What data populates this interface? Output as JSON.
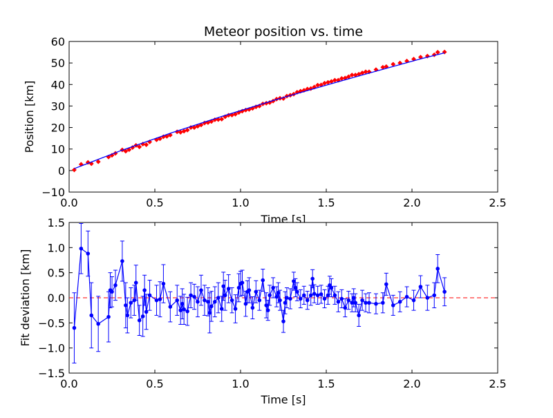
{
  "chart_data": [
    {
      "type": "scatter",
      "title": "Meteor position vs. time",
      "xlabel": "Time [s]",
      "ylabel": "Position [km]",
      "xlim": [
        0.0,
        2.5
      ],
      "ylim": [
        -10,
        60
      ],
      "xticks": [
        "0.0",
        "0.5",
        "1.0",
        "1.5",
        "2.0",
        "2.5"
      ],
      "yticks": [
        "−10",
        "0",
        "10",
        "20",
        "30",
        "40",
        "50",
        "60"
      ],
      "grid": false,
      "series": [
        {
          "kind": "observations",
          "marker": "diamond",
          "color": "#ff0000",
          "x": [
            0.03,
            0.07,
            0.11,
            0.13,
            0.17,
            0.23,
            0.25,
            0.27,
            0.31,
            0.33,
            0.35,
            0.37,
            0.39,
            0.41,
            0.43,
            0.45,
            0.47,
            0.51,
            0.53,
            0.55,
            0.57,
            0.59,
            0.63,
            0.65,
            0.67,
            0.69,
            0.71,
            0.73,
            0.75,
            0.77,
            0.79,
            0.81,
            0.83,
            0.85,
            0.87,
            0.89,
            0.91,
            0.93,
            0.95,
            0.97,
            0.99,
            1.01,
            1.03,
            1.05,
            1.07,
            1.09,
            1.11,
            1.13,
            1.15,
            1.17,
            1.19,
            1.21,
            1.23,
            1.25,
            1.27,
            1.29,
            1.31,
            1.33,
            1.35,
            1.37,
            1.39,
            1.41,
            1.43,
            1.45,
            1.47,
            1.49,
            1.51,
            1.53,
            1.55,
            1.57,
            1.59,
            1.61,
            1.63,
            1.65,
            1.67,
            1.69,
            1.71,
            1.73,
            1.75,
            1.79,
            1.83,
            1.85,
            1.89,
            1.93,
            1.97,
            2.01,
            2.05,
            2.09,
            2.13,
            2.15,
            2.19
          ],
          "y": [
            0.3,
            2.9,
            3.8,
            3.2,
            4.1,
            6.3,
            7.1,
            8.0,
            9.6,
            9.0,
            9.7,
            10.7,
            11.7,
            11.0,
            12.3,
            12.0,
            13.3,
            14.3,
            14.8,
            15.7,
            15.9,
            16.5,
            18.0,
            17.8,
            18.3,
            18.8,
            20.0,
            20.0,
            20.6,
            21.2,
            22.1,
            22.3,
            22.8,
            23.6,
            23.7,
            23.9,
            25.0,
            25.7,
            25.8,
            26.2,
            27.0,
            27.6,
            28.1,
            28.4,
            28.9,
            29.6,
            30.0,
            31.0,
            31.3,
            31.6,
            32.3,
            33.2,
            33.6,
            33.5,
            34.6,
            35.0,
            35.5,
            36.4,
            36.9,
            37.3,
            37.9,
            38.1,
            38.8,
            39.7,
            39.8,
            40.6,
            41.0,
            41.4,
            42.0,
            42.0,
            42.8,
            43.0,
            43.6,
            44.4,
            44.4,
            44.8,
            45.4,
            45.9,
            45.9,
            46.9,
            48.0,
            48.3,
            49.4,
            50.0,
            50.9,
            51.8,
            52.7,
            53.2,
            53.8,
            55.0,
            55.1
          ]
        },
        {
          "kind": "fit",
          "color": "#0000ff",
          "x": [
            0.03,
            0.3,
            0.6,
            0.9,
            1.2,
            1.5,
            1.8,
            2.05,
            2.19
          ],
          "y": [
            0.9,
            9.2,
            17.6,
            25.4,
            32.8,
            39.7,
            46.4,
            51.9,
            54.7
          ]
        }
      ]
    },
    {
      "type": "line",
      "title": "",
      "xlabel": "Time [s]",
      "ylabel": "Fit deviation [km]",
      "xlim": [
        0.0,
        2.5
      ],
      "ylim": [
        -1.5,
        1.5
      ],
      "xticks": [
        "0.0",
        "0.5",
        "1.0",
        "1.5",
        "2.0",
        "2.5"
      ],
      "yticks": [
        "−1.5",
        "−1.0",
        "−0.5",
        "0.0",
        "0.5",
        "1.0",
        "1.5"
      ],
      "grid": false,
      "reference_line": {
        "y": 0,
        "color": "#ff0000",
        "style": "dashed"
      },
      "series": [
        {
          "color": "#0000ff",
          "marker": "circle",
          "x": [
            0.03,
            0.07,
            0.11,
            0.13,
            0.17,
            0.23,
            0.24,
            0.25,
            0.27,
            0.31,
            0.33,
            0.34,
            0.36,
            0.38,
            0.39,
            0.41,
            0.43,
            0.44,
            0.45,
            0.47,
            0.51,
            0.53,
            0.55,
            0.59,
            0.63,
            0.65,
            0.66,
            0.67,
            0.69,
            0.71,
            0.73,
            0.75,
            0.77,
            0.79,
            0.81,
            0.82,
            0.83,
            0.85,
            0.87,
            0.89,
            0.9,
            0.91,
            0.93,
            0.95,
            0.97,
            0.99,
            1.0,
            1.01,
            1.03,
            1.04,
            1.05,
            1.07,
            1.09,
            1.11,
            1.13,
            1.15,
            1.16,
            1.17,
            1.19,
            1.21,
            1.22,
            1.23,
            1.25,
            1.26,
            1.27,
            1.29,
            1.31,
            1.32,
            1.33,
            1.35,
            1.37,
            1.39,
            1.41,
            1.42,
            1.43,
            1.45,
            1.47,
            1.49,
            1.51,
            1.52,
            1.53,
            1.55,
            1.57,
            1.59,
            1.61,
            1.63,
            1.65,
            1.66,
            1.67,
            1.69,
            1.71,
            1.73,
            1.75,
            1.79,
            1.83,
            1.85,
            1.89,
            1.93,
            1.97,
            2.01,
            2.05,
            2.09,
            2.13,
            2.15,
            2.19
          ],
          "y": [
            -0.6,
            0.98,
            0.88,
            -0.35,
            -0.52,
            -0.38,
            0.15,
            0.12,
            0.25,
            0.73,
            -0.15,
            -0.35,
            -0.1,
            -0.05,
            0.3,
            -0.45,
            -0.37,
            0.15,
            -0.28,
            0.05,
            -0.05,
            -0.03,
            0.28,
            -0.18,
            -0.05,
            -0.25,
            -0.12,
            -0.23,
            -0.27,
            0.05,
            0.02,
            -0.08,
            0.15,
            -0.05,
            -0.08,
            -0.3,
            -0.17,
            -0.08,
            0.0,
            -0.22,
            0.23,
            0.05,
            0.18,
            -0.05,
            -0.22,
            0.2,
            0.28,
            0.3,
            -0.12,
            0.12,
            0.15,
            -0.2,
            0.12,
            -0.05,
            0.35,
            -0.15,
            -0.25,
            0.05,
            0.2,
            0.02,
            0.1,
            -0.05,
            -0.47,
            -0.1,
            0.0,
            -0.02,
            0.33,
            0.2,
            0.12,
            -0.02,
            0.05,
            -0.05,
            0.05,
            0.38,
            0.08,
            0.05,
            0.07,
            -0.02,
            0.05,
            0.25,
            0.2,
            0.05,
            -0.08,
            -0.02,
            -0.2,
            -0.05,
            -0.1,
            0.0,
            -0.1,
            -0.35,
            -0.05,
            -0.1,
            -0.1,
            -0.12,
            -0.1,
            0.27,
            -0.15,
            -0.08,
            0.02,
            -0.05,
            0.22,
            0.0,
            0.05,
            0.58,
            0.12
          ],
          "err": [
            0.7,
            0.5,
            0.45,
            0.65,
            0.55,
            0.5,
            0.35,
            0.3,
            0.3,
            0.4,
            0.45,
            0.35,
            0.3,
            0.3,
            0.35,
            0.3,
            0.4,
            0.3,
            0.35,
            0.3,
            0.3,
            0.35,
            0.38,
            0.3,
            0.3,
            0.28,
            0.3,
            0.3,
            0.28,
            0.25,
            0.25,
            0.3,
            0.3,
            0.3,
            0.28,
            0.4,
            0.3,
            0.3,
            0.3,
            0.25,
            0.28,
            0.3,
            0.28,
            0.25,
            0.28,
            0.28,
            0.25,
            0.25,
            0.25,
            0.22,
            0.25,
            0.22,
            0.22,
            0.2,
            0.22,
            0.25,
            0.2,
            0.2,
            0.2,
            0.2,
            0.2,
            0.2,
            0.22,
            0.22,
            0.2,
            0.2,
            0.18,
            0.18,
            0.18,
            0.18,
            0.18,
            0.18,
            0.2,
            0.18,
            0.18,
            0.18,
            0.18,
            0.18,
            0.18,
            0.18,
            0.18,
            0.18,
            0.2,
            0.18,
            0.18,
            0.18,
            0.18,
            0.18,
            0.18,
            0.22,
            0.2,
            0.18,
            0.2,
            0.2,
            0.2,
            0.22,
            0.2,
            0.2,
            0.2,
            0.2,
            0.22,
            0.25,
            0.25,
            0.28,
            0.28
          ]
        }
      ]
    }
  ]
}
